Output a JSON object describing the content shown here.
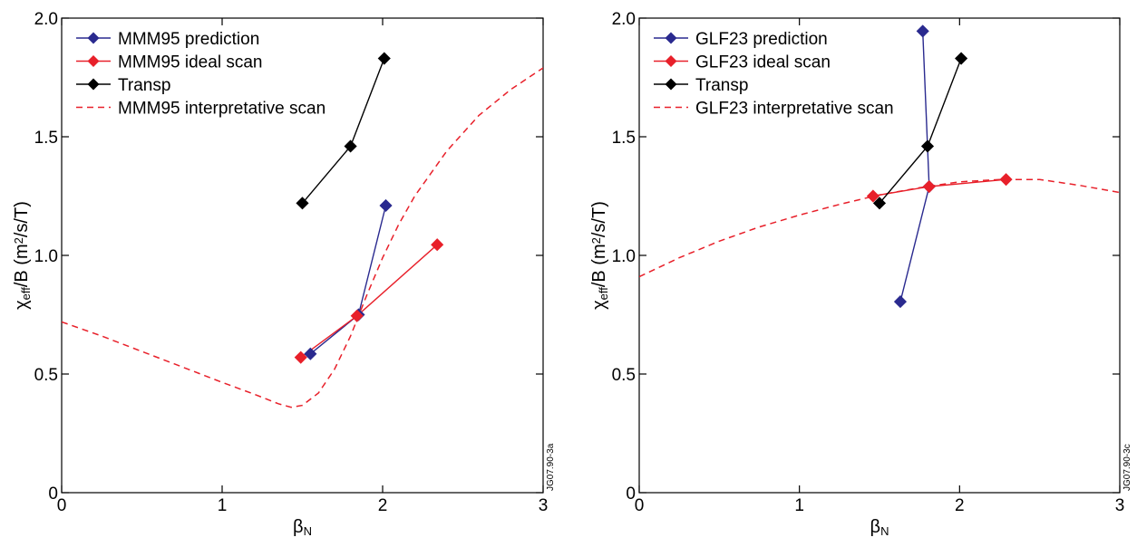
{
  "chart_data": [
    {
      "type": "line",
      "xlabel": "βN",
      "ylabel": "χeff/B (m²/s/T)",
      "xlim": [
        0,
        3
      ],
      "ylim": [
        0,
        2.0
      ],
      "x_ticks": [
        "0",
        "1",
        "2",
        "3"
      ],
      "y_ticks": [
        "0",
        "0.5",
        "1.0",
        "1.5",
        "2.0"
      ],
      "legend_position": "top-left",
      "figure_id": "JG07.90-3a",
      "series": [
        {
          "name": "MMM95 prediction",
          "color": "#2a2a8f",
          "marker": "diamond",
          "style": "solid",
          "points": [
            [
              1.55,
              0.585
            ],
            [
              1.85,
              0.75
            ],
            [
              2.02,
              1.21
            ]
          ]
        },
        {
          "name": "MMM95 ideal scan",
          "color": "#e8202a",
          "marker": "diamond",
          "style": "solid",
          "points": [
            [
              1.49,
              0.57
            ],
            [
              1.84,
              0.745
            ],
            [
              2.34,
              1.045
            ]
          ]
        },
        {
          "name": "Transp",
          "color": "#000000",
          "marker": "diamond",
          "style": "solid",
          "points": [
            [
              1.5,
              1.22
            ],
            [
              1.8,
              1.46
            ],
            [
              2.01,
              1.83
            ]
          ]
        },
        {
          "name": "MMM95 interpretative scan",
          "color": "#e8202a",
          "marker": "none",
          "style": "dashed",
          "points": [
            [
              0,
              0.72
            ],
            [
              0.25,
              0.66
            ],
            [
              0.5,
              0.595
            ],
            [
              0.75,
              0.53
            ],
            [
              1.0,
              0.465
            ],
            [
              1.2,
              0.415
            ],
            [
              1.35,
              0.375
            ],
            [
              1.43,
              0.36
            ],
            [
              1.5,
              0.368
            ],
            [
              1.6,
              0.42
            ],
            [
              1.7,
              0.52
            ],
            [
              1.8,
              0.66
            ],
            [
              1.9,
              0.83
            ],
            [
              2.0,
              0.99
            ],
            [
              2.1,
              1.13
            ],
            [
              2.2,
              1.25
            ],
            [
              2.4,
              1.44
            ],
            [
              2.6,
              1.59
            ],
            [
              2.8,
              1.7
            ],
            [
              3.0,
              1.79
            ]
          ]
        }
      ]
    },
    {
      "type": "line",
      "xlabel": "βN",
      "ylabel": "χeff/B (m²/s/T)",
      "xlim": [
        0,
        3
      ],
      "ylim": [
        0,
        2.0
      ],
      "x_ticks": [
        "0",
        "1",
        "2",
        "3"
      ],
      "y_ticks": [
        "0",
        "0.5",
        "1.0",
        "1.5",
        "2.0"
      ],
      "legend_position": "top-left",
      "figure_id": "JG07.90-3c",
      "series": [
        {
          "name": "GLF23 prediction",
          "color": "#2a2a8f",
          "marker": "diamond",
          "style": "solid",
          "points": [
            [
              1.77,
              1.945
            ],
            [
              1.81,
              1.29
            ],
            [
              1.63,
              0.805
            ]
          ]
        },
        {
          "name": "GLF23 ideal scan",
          "color": "#e8202a",
          "marker": "diamond",
          "style": "solid",
          "points": [
            [
              1.46,
              1.25
            ],
            [
              1.81,
              1.29
            ],
            [
              2.29,
              1.32
            ]
          ]
        },
        {
          "name": "Transp",
          "color": "#000000",
          "marker": "diamond",
          "style": "solid",
          "points": [
            [
              1.5,
              1.22
            ],
            [
              1.8,
              1.46
            ],
            [
              2.01,
              1.83
            ]
          ]
        },
        {
          "name": "GLF23 interpretative scan",
          "color": "#e8202a",
          "marker": "none",
          "style": "dashed",
          "points": [
            [
              0,
              0.91
            ],
            [
              0.25,
              0.99
            ],
            [
              0.5,
              1.06
            ],
            [
              0.75,
              1.12
            ],
            [
              1.0,
              1.17
            ],
            [
              1.25,
              1.215
            ],
            [
              1.5,
              1.255
            ],
            [
              1.75,
              1.285
            ],
            [
              2.0,
              1.31
            ],
            [
              2.25,
              1.32
            ],
            [
              2.5,
              1.32
            ],
            [
              2.75,
              1.295
            ],
            [
              3.0,
              1.265
            ]
          ]
        }
      ]
    }
  ]
}
